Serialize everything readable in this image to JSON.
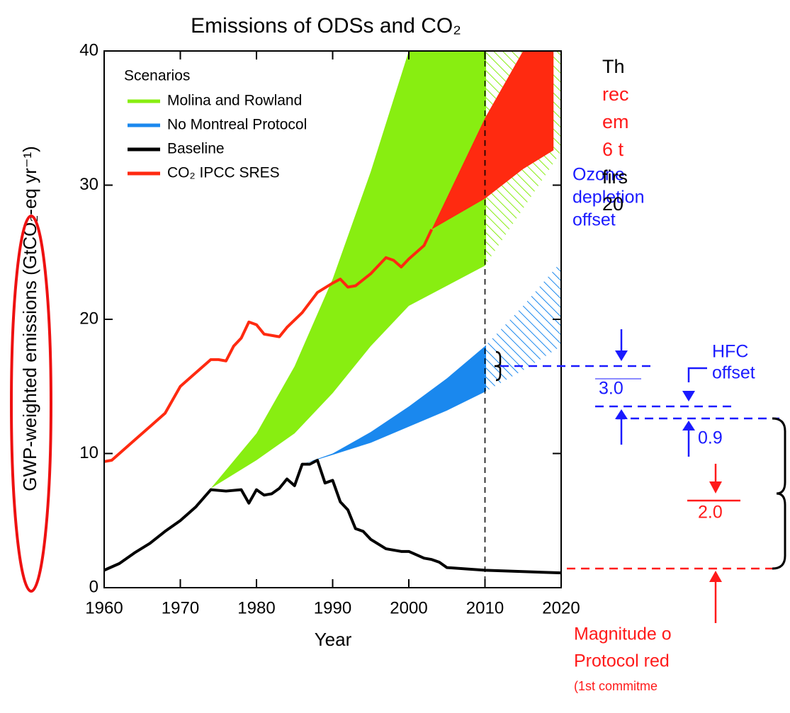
{
  "chart_data": {
    "type": "line",
    "title": "Emissions of ODSs and CO₂",
    "x_label": "Year",
    "y_label": "GWP-weighted emissions (GtCO₂-eq yr⁻¹)",
    "legend_title": "Scenarios",
    "xlim": [
      1960,
      2020
    ],
    "xticks": [
      1960,
      1970,
      1980,
      1990,
      2000,
      2010,
      2020
    ],
    "ylim": [
      0,
      40
    ],
    "yticks": [
      0,
      10,
      20,
      30,
      40
    ],
    "divider_x": 2010,
    "series": [
      {
        "name": "Molina and Rowland",
        "color": "#88ee11",
        "kind": "band",
        "x": [
          1974,
          1980,
          1985,
          1990,
          1995,
          2000,
          2010,
          2020
        ],
        "values": [
          7.4,
          11.5,
          16.5,
          23,
          31,
          40,
          40,
          40
        ],
        "lower": [
          7.4,
          9.5,
          11.5,
          14.5,
          18,
          21,
          24,
          32.5
        ]
      },
      {
        "name": "No Montreal Protocol",
        "color": "#1a88ee",
        "kind": "band",
        "x": [
          1986,
          1990,
          1995,
          2000,
          2005,
          2010,
          2015,
          2020
        ],
        "values": [
          9.2,
          10,
          11.6,
          13.5,
          15.6,
          18,
          21,
          24.3
        ],
        "lower": [
          9.2,
          9.9,
          10.8,
          12,
          13.2,
          14.6,
          16.2,
          18
        ]
      },
      {
        "name": "Baseline",
        "color": "#000000",
        "kind": "line",
        "x": [
          1960,
          1962,
          1964,
          1966,
          1968,
          1970,
          1972,
          1974,
          1976,
          1978,
          1979,
          1980,
          1981,
          1982,
          1983,
          1984,
          1985,
          1986,
          1987,
          1988,
          1989,
          1990,
          1991,
          1992,
          1993,
          1994,
          1995,
          1997,
          1999,
          2000,
          2002,
          2003,
          2004,
          2005,
          2010,
          2020
        ],
        "values": [
          1.3,
          1.8,
          2.6,
          3.3,
          4.2,
          5.0,
          6.0,
          7.3,
          7.2,
          7.3,
          6.3,
          7.3,
          6.9,
          7.0,
          7.4,
          8.1,
          7.6,
          9.2,
          9.2,
          9.5,
          7.8,
          8.0,
          6.4,
          5.8,
          4.4,
          4.2,
          3.6,
          2.9,
          2.7,
          2.7,
          2.2,
          2.1,
          1.9,
          1.5,
          1.3,
          1.1
        ]
      },
      {
        "name": "CO₂ IPCC SRES",
        "color": "#ff2a10",
        "kind": "line",
        "x": [
          1960,
          1961,
          1962,
          1964,
          1966,
          1968,
          1970,
          1972,
          1974,
          1975,
          1976,
          1977,
          1978,
          1979,
          1980,
          1981,
          1982,
          1983,
          1984,
          1986,
          1988,
          1990,
          1991,
          1992,
          1993,
          1995,
          1997,
          1998,
          1999,
          2000,
          2002,
          2003
        ],
        "values": [
          9.4,
          9.5,
          10,
          11,
          12,
          13,
          15,
          16,
          17,
          17,
          16.9,
          18,
          18.6,
          19.8,
          19.6,
          18.9,
          18.8,
          18.7,
          19.4,
          20.5,
          22,
          22.7,
          23,
          22.4,
          22.5,
          23.4,
          24.6,
          24.4,
          23.9,
          24.5,
          25.5,
          26.7
        ],
        "band": {
          "x": [
            2003,
            2010,
            2015,
            2019
          ],
          "values": [
            26.7,
            35,
            40,
            40
          ],
          "lower": [
            26.7,
            29,
            31.2,
            32.6
          ]
        }
      }
    ]
  },
  "annotations": {
    "ozone": [
      "Ozone",
      "depletion",
      "offset"
    ],
    "hfc": [
      "HFC",
      "offset"
    ],
    "ozone_value": "3.0",
    "hfc_value": "0.9",
    "mp_value": "2.0",
    "magnitude": [
      "Magnitude o",
      "Protocol red",
      "(1st commitme"
    ]
  },
  "side_text": {
    "black_top": "Th",
    "red": [
      "rec",
      "em",
      "6 t"
    ],
    "black": [
      "firs",
      "20"
    ]
  }
}
